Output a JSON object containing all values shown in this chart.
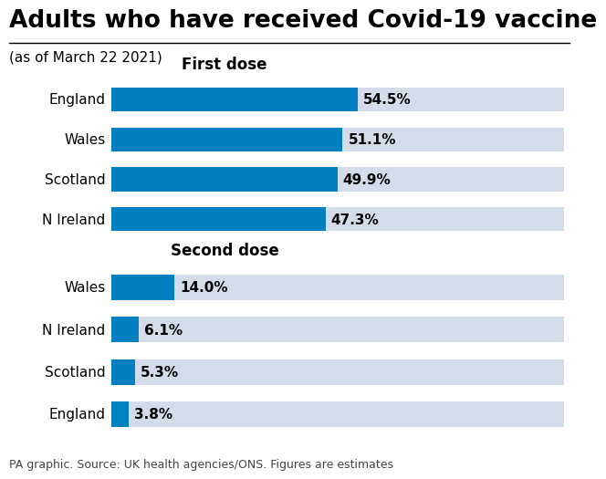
{
  "title": "Adults who have received Covid-19 vaccine",
  "subtitle": "(as of March 22 2021)",
  "footer": "PA graphic. Source: UK health agencies/ONS. Figures are estimates",
  "first_dose": {
    "label": "First dose",
    "categories": [
      "England",
      "Wales",
      "Scotland",
      "N Ireland"
    ],
    "values": [
      54.5,
      51.1,
      49.9,
      47.3
    ],
    "max_val": 100
  },
  "second_dose": {
    "label": "Second dose",
    "categories": [
      "Wales",
      "N Ireland",
      "Scotland",
      "England"
    ],
    "values": [
      14.0,
      6.1,
      5.3,
      3.8
    ],
    "max_val": 100
  },
  "bar_color": "#0080C0",
  "bg_bar_color": "#D3DCE8",
  "background_color": "#FFFFFF",
  "bar_height": 0.6,
  "value_fontsize": 11,
  "category_fontsize": 11,
  "title_fontsize": 19,
  "subtitle_fontsize": 11,
  "section_label_fontsize": 12,
  "footer_fontsize": 9
}
